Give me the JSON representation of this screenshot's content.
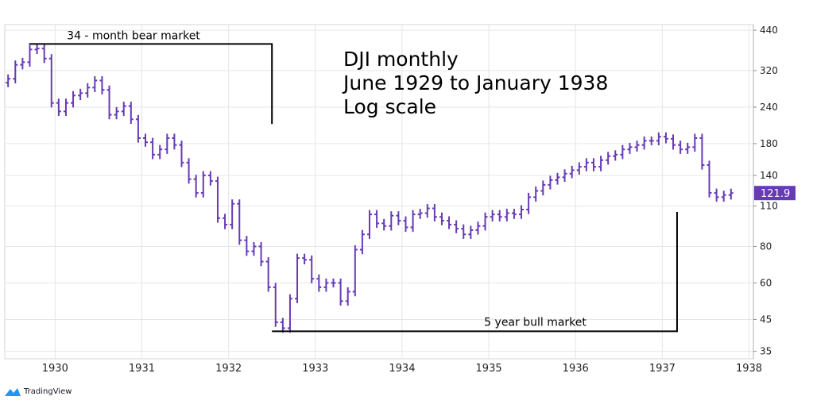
{
  "chart_data": {
    "type": "ohlc",
    "title_lines": [
      "DJI monthly",
      "June 1929 to January 1938",
      "Log scale"
    ],
    "y_scale": "log",
    "ylim": [
      33,
      460
    ],
    "y_ticks": [
      440,
      320,
      240,
      180,
      140,
      110,
      80,
      60,
      45,
      35
    ],
    "x_ticks": [
      "1930",
      "1931",
      "1932",
      "1933",
      "1934",
      "1935",
      "1936",
      "1937",
      "1938"
    ],
    "x_tick_dates": [
      1930,
      1931,
      1932,
      1933,
      1934,
      1935,
      1936,
      1937,
      1938
    ],
    "xlim": [
      1929.42,
      1938.05
    ],
    "last_value": "121.9",
    "last_value_num": 121.9,
    "colors": {
      "bars": "#673ab7",
      "label_bg": "#673ab7",
      "grid": "#e6e6e6",
      "axis": "#888888"
    },
    "grid": true,
    "close": [
      300,
      335,
      342,
      378,
      381,
      352,
      248,
      232,
      248,
      263,
      268,
      280,
      296,
      275,
      226,
      232,
      242,
      218,
      188,
      182,
      165,
      172,
      188,
      178,
      155,
      136,
      122,
      140,
      134,
      100,
      95,
      112,
      84,
      77,
      80,
      71,
      58,
      44,
      42,
      53,
      73,
      72,
      62,
      58,
      60,
      60,
      52,
      56,
      78,
      88,
      103,
      96,
      94,
      102,
      98,
      93,
      103,
      104,
      108,
      101,
      98,
      95,
      92,
      88,
      91,
      94,
      101,
      103,
      101,
      104,
      103,
      107,
      118,
      124,
      130,
      135,
      138,
      142,
      146,
      150,
      155,
      150,
      158,
      163,
      165,
      172,
      175,
      178,
      184,
      184,
      190,
      187,
      178,
      172,
      175,
      188,
      152,
      122,
      118,
      120,
      121.9
    ],
    "annotations": [
      {
        "text": "34 - month bear market",
        "start": 1929.7,
        "end": 1932.5,
        "level": 395,
        "end_level": 210
      },
      {
        "text": "5 year bull market",
        "start": 1932.5,
        "end": 1937.17,
        "level": 41,
        "end_level": 105
      }
    ]
  },
  "branding": {
    "logo_text": "TradingView"
  }
}
